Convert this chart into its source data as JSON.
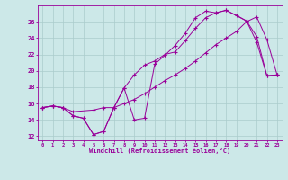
{
  "xlabel": "Windchill (Refroidissement éolien,°C)",
  "bg_color": "#cce8e8",
  "line_color": "#990099",
  "grid_color": "#aacccc",
  "xlim": [
    -0.5,
    23.5
  ],
  "ylim": [
    11.5,
    28.0
  ],
  "xticks": [
    0,
    1,
    2,
    3,
    4,
    5,
    6,
    7,
    8,
    9,
    10,
    11,
    12,
    13,
    14,
    15,
    16,
    17,
    18,
    19,
    20,
    21,
    22,
    23
  ],
  "yticks": [
    12,
    14,
    16,
    18,
    20,
    22,
    24,
    26
  ],
  "line1_x": [
    0,
    1,
    2,
    3,
    4,
    5,
    6,
    7,
    8,
    9,
    10,
    11,
    12,
    13,
    14,
    15,
    16,
    17,
    18,
    20,
    21,
    22,
    23
  ],
  "line1_y": [
    15.5,
    15.7,
    15.5,
    14.5,
    14.2,
    12.2,
    12.6,
    15.5,
    17.9,
    14.0,
    14.2,
    20.8,
    21.9,
    23.1,
    24.6,
    26.5,
    27.3,
    27.1,
    27.4,
    26.1,
    23.5,
    19.4,
    19.5
  ],
  "line2_x": [
    0,
    1,
    2,
    3,
    5,
    6,
    7,
    8,
    9,
    10,
    11,
    12,
    13,
    14,
    15,
    16,
    17,
    18,
    19,
    20,
    21,
    22,
    23
  ],
  "line2_y": [
    15.5,
    15.7,
    15.5,
    15.0,
    15.2,
    15.5,
    15.5,
    16.0,
    16.5,
    17.2,
    18.0,
    18.8,
    19.5,
    20.3,
    21.2,
    22.2,
    23.2,
    24.0,
    24.8,
    26.0,
    26.6,
    23.8,
    19.5
  ],
  "line3_x": [
    0,
    1,
    2,
    3,
    4,
    5,
    6,
    7,
    8,
    9,
    10,
    11,
    12,
    13,
    14,
    15,
    16,
    17,
    18,
    19,
    20,
    21,
    22,
    23
  ],
  "line3_y": [
    15.5,
    15.7,
    15.5,
    14.5,
    14.2,
    12.2,
    12.6,
    15.5,
    17.9,
    19.5,
    20.7,
    21.2,
    22.0,
    22.3,
    23.7,
    25.2,
    26.5,
    27.1,
    27.4,
    26.8,
    26.1,
    24.2,
    19.4,
    19.5
  ]
}
